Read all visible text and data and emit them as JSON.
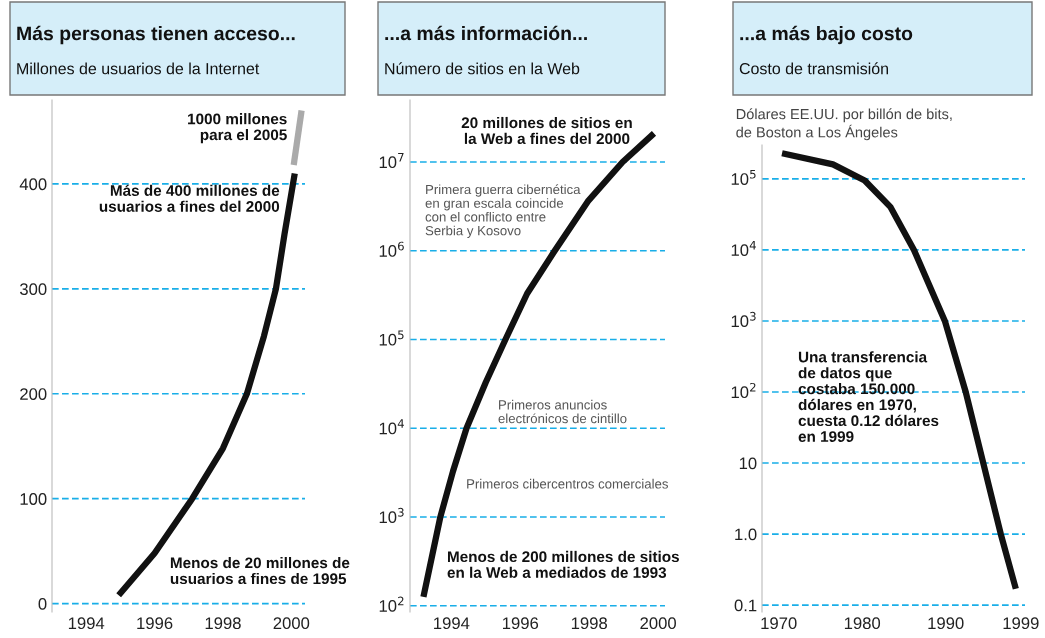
{
  "chart_data": [
    {
      "type": "line",
      "title": "Más personas tienen acceso...",
      "subtitle": "Millones de usuarios de la Internet",
      "xlim": [
        1993,
        2000.4
      ],
      "xticks": [
        1994,
        1996,
        1998,
        2000
      ],
      "ylim": [
        -8,
        480
      ],
      "yticks": [
        0,
        100,
        200,
        300,
        400
      ],
      "grid": "y",
      "legend": false,
      "marker": "none",
      "line_style": "solid",
      "series": [
        {
          "color": "#111111",
          "x": [
            1994.95,
            1996.0,
            1997.1,
            1998.0,
            1998.7,
            1999.2,
            1999.55,
            1999.8,
            2000.1
          ],
          "values": [
            8,
            48,
            100,
            148,
            200,
            255,
            300,
            352,
            410
          ]
        },
        {
          "color": "#aaaaaa",
          "x": [
            2000.07,
            2000.3
          ],
          "values": [
            418,
            470
          ]
        }
      ],
      "annotations": [
        "1000 millones\npara el 2005",
        "Más de 400 millones de\nusuarios a fines del 2000",
        "Menos de 20 millones de\nusuarios a fines de 1995"
      ]
    },
    {
      "type": "line",
      "title": "...a más información...",
      "subtitle": "Número de sitios en la Web",
      "log": true,
      "xlim": [
        1992.8,
        2000.2
      ],
      "xticks": [
        1994,
        1996,
        1998,
        2000
      ],
      "ylim": [
        85,
        50000000
      ],
      "yticks": [
        {
          "value": 100,
          "label": "10$^{2}$"
        },
        {
          "value": 1000,
          "label": "10$^{3}$"
        },
        {
          "value": 10000,
          "label": "10$^{4}$"
        },
        {
          "value": 100000,
          "label": "10$^{5}$"
        },
        {
          "value": 1000000,
          "label": "10$^{6}$"
        },
        {
          "value": 10000000,
          "label": "10$^{7}$"
        }
      ],
      "grid": "y",
      "legend": false,
      "marker": "none",
      "line_style": "solid",
      "series": [
        {
          "color": "#111111",
          "x": [
            1993.19,
            1993.68,
            1994.05,
            1994.44,
            1995.0,
            1995.57,
            1996.2,
            1997.0,
            1997.96,
            1998.97,
            1999.88
          ],
          "values": [
            126,
            1000,
            3300,
            10000,
            33000,
            100000,
            330000,
            1000000,
            3600000,
            10000000,
            21000000
          ]
        }
      ],
      "annotations": [
        "20 millones de sitios en\nla Web a fines del 2000",
        "Primera guerra cibernética\nen gran escala coincide\ncon el conflicto entre\nSerbia y Kosovo",
        "Primeros anuncios\nelectrónicos de cintillo",
        "Primeros cibercentros comerciales",
        "Menos de 200 millones de sitios\nen la Web a mediados de 1993"
      ]
    },
    {
      "type": "line",
      "title": "...a más bajo costo",
      "subtitle": "Costo de transmisión",
      "ylabel": "Dólares EE.UU. por billón de bits,\nde Boston a Los Ángeles",
      "log": true,
      "xlim": [
        1968,
        1999.5
      ],
      "xticks": [
        1970,
        1980,
        1990,
        1999
      ],
      "ylim": [
        0.08,
        300000
      ],
      "yticks": [
        {
          "value": 0.1,
          "label": "0.1"
        },
        {
          "value": 1,
          "label": "1.0"
        },
        10,
        {
          "value": 100,
          "label": "10$^{2}$"
        },
        {
          "value": 1000,
          "label": "10$^{3}$"
        },
        {
          "value": 10000,
          "label": "10$^{4}$"
        },
        {
          "value": 100000,
          "label": "10$^{5}$"
        }
      ],
      "grid": "y",
      "legend": false,
      "marker": "none",
      "line_style": "solid",
      "series": [
        {
          "color": "#111111",
          "x": [
            1970.4,
            1976.5,
            1980.3,
            1983.4,
            1986.2,
            1989.9,
            1992.4,
            1994.5,
            1996.6,
            1998.4
          ],
          "values": [
            230000,
            160000,
            95000,
            40000,
            10000,
            1000,
            100,
            10,
            1,
            0.17
          ]
        }
      ],
      "annotations": [
        "Una transferencia\nde datos que\ncostaba 150.000\ndólares en 1970,\ncuesta 0.12 dólares\nen 1999"
      ]
    }
  ]
}
